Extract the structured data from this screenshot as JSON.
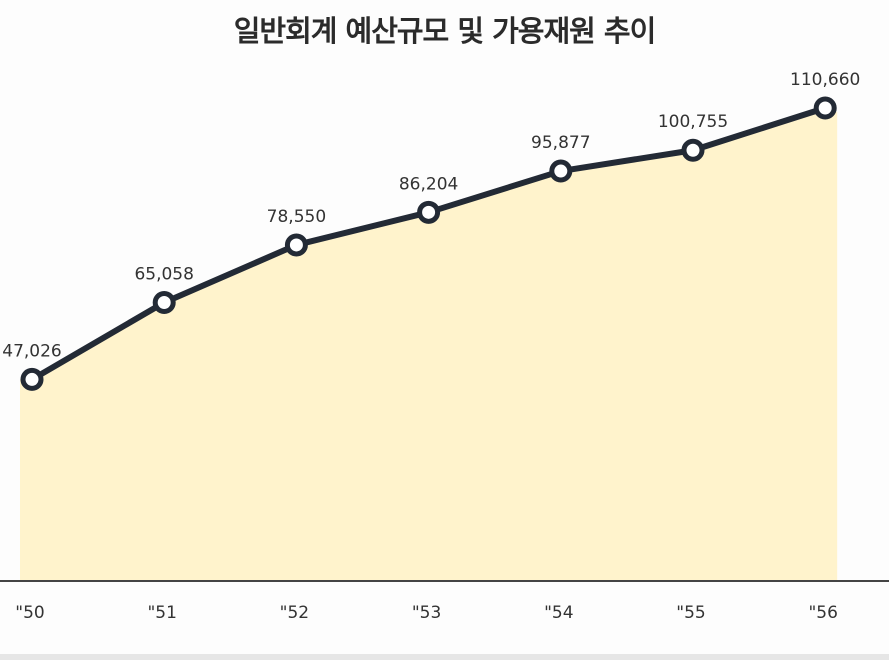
{
  "chart_data": {
    "type": "area",
    "title": "일반회계 예산규모 및 가용재원 추이",
    "categories": [
      "\"50",
      "\"51",
      "\"52",
      "\"53",
      "\"54",
      "\"55",
      "\"56"
    ],
    "values": [
      47026,
      65058,
      78550,
      86204,
      95877,
      100755,
      110660
    ],
    "value_labels": [
      "47,026",
      "65,058",
      "78,550",
      "86,204",
      "95,877",
      "100,755",
      "110,660"
    ],
    "ylim": [
      0,
      120000
    ],
    "grid": false,
    "legend": "none"
  },
  "colors": {
    "line": "#232a35",
    "area": "#fff3cc",
    "marker_fill": "#ffffff",
    "axis": "#444444"
  }
}
